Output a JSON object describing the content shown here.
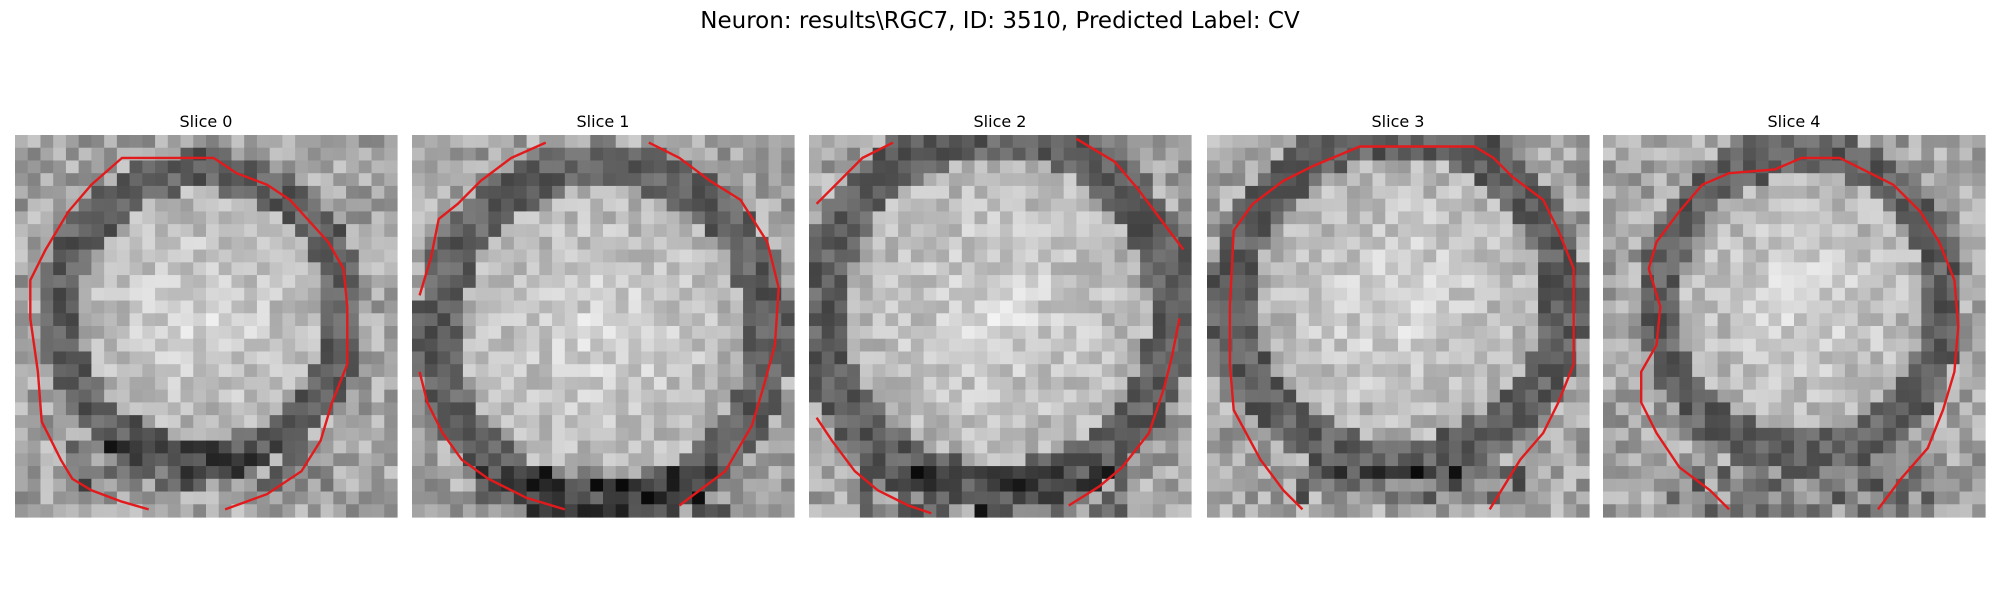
{
  "figure": {
    "title": "Neuron: results\\RGC7, ID: 3510, Predicted Label: CV"
  },
  "contour_color": "#e31a1c",
  "panels": [
    {
      "title": "Slice 0"
    },
    {
      "title": "Slice 1"
    },
    {
      "title": "Slice 2"
    },
    {
      "title": "Slice 3"
    },
    {
      "title": "Slice 4"
    }
  ]
}
